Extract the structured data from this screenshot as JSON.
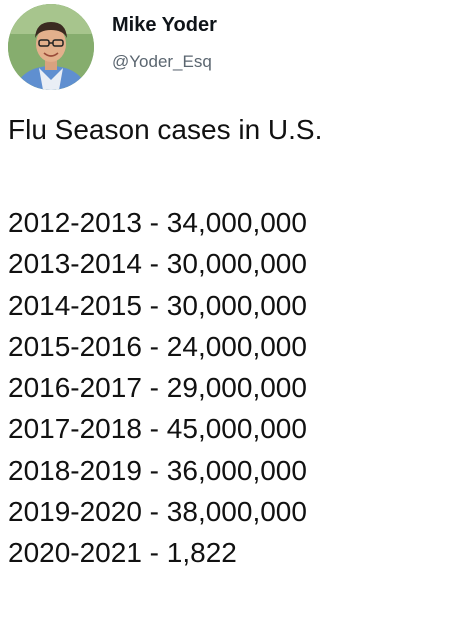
{
  "author": {
    "display_name": "Mike Yoder",
    "handle": "@Yoder_Esq"
  },
  "tweet": {
    "headline": "Flu Season cases in U.S.",
    "seasons": [
      {
        "season": "2012-2013",
        "cases": "34,000,000"
      },
      {
        "season": "2013-2014",
        "cases": "30,000,000"
      },
      {
        "season": "2014-2015",
        "cases": "30,000,000"
      },
      {
        "season": "2015-2016",
        "cases": "24,000,000"
      },
      {
        "season": "2016-2017",
        "cases": "29,000,000"
      },
      {
        "season": "2017-2018",
        "cases": "45,000,000"
      },
      {
        "season": "2018-2019",
        "cases": "36,000,000"
      },
      {
        "season": "2019-2020",
        "cases": "38,000,000"
      },
      {
        "season": "2020-2021",
        "cases": "1,822"
      }
    ],
    "separator": " - "
  },
  "colors": {
    "name": "#0f1419",
    "handle": "#5b6670",
    "text": "#111111"
  }
}
